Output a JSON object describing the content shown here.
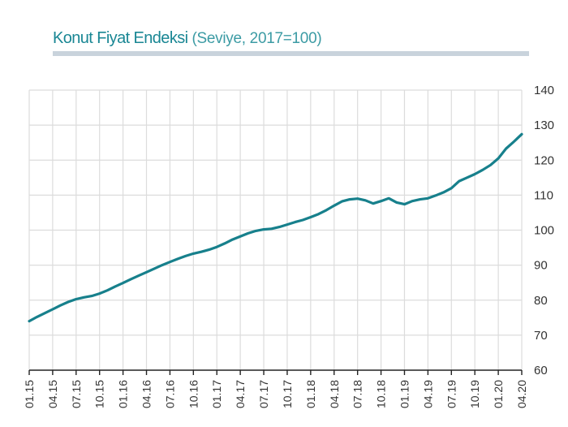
{
  "title": {
    "main": "Konut Fiyat Endeksi",
    "sub": " (Seviye, 2017=100)"
  },
  "colors": {
    "line": "#17808c",
    "title": "#1a8794",
    "title_bar": "#c9d3dc",
    "grid": "#dcdcdc"
  },
  "chart_data": {
    "type": "line",
    "title": "Konut Fiyat Endeksi (Seviye, 2017=100)",
    "xlabel": "",
    "ylabel": "",
    "y_axis_side": "right",
    "ylim": [
      60,
      140
    ],
    "yticks": [
      60,
      70,
      80,
      90,
      100,
      110,
      120,
      130,
      140
    ],
    "grid": true,
    "legend": "none",
    "xtick_labels": [
      "01.15",
      "04.15",
      "07.15",
      "10.15",
      "01.16",
      "04.16",
      "07.16",
      "10.16",
      "01.17",
      "04.17",
      "07.17",
      "10.17",
      "01.18",
      "04.18",
      "07.18",
      "10.18",
      "01.19",
      "04.19",
      "07.19",
      "10.19",
      "01.20",
      "04.20"
    ],
    "x_frequency": "monthly",
    "x_start": "01.15",
    "x_end": "04.20",
    "series": [
      {
        "name": "Konut Fiyat Endeksi",
        "values": [
          74.0,
          75.2,
          76.3,
          77.4,
          78.5,
          79.5,
          80.3,
          80.8,
          81.2,
          81.9,
          82.8,
          83.9,
          84.9,
          86.0,
          87.0,
          88.0,
          89.0,
          90.0,
          90.9,
          91.8,
          92.6,
          93.3,
          93.8,
          94.4,
          95.2,
          96.2,
          97.3,
          98.2,
          99.1,
          99.8,
          100.2,
          100.4,
          100.9,
          101.6,
          102.3,
          102.9,
          103.7,
          104.6,
          105.7,
          107.0,
          108.2,
          108.8,
          109.0,
          108.5,
          107.6,
          108.3,
          109.1,
          107.9,
          107.4,
          108.3,
          108.8,
          109.1,
          109.9,
          110.8,
          112.0,
          114.0,
          115.0,
          116.0,
          117.2,
          118.6,
          120.5,
          123.3,
          125.3,
          127.4
        ]
      }
    ]
  }
}
